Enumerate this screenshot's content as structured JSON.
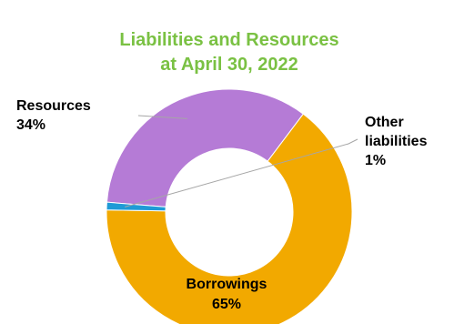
{
  "chart_data": {
    "type": "pie",
    "title_lines": [
      "Liabilities and Resources",
      "at April 30, 2022"
    ],
    "slices": [
      {
        "name": "Borrowings",
        "label_lines": [
          "Borrowings"
        ],
        "percent_label": "65%",
        "value": 65,
        "color": "#f2a900"
      },
      {
        "name": "Resources",
        "label_lines": [
          "Resources"
        ],
        "percent_label": "34%",
        "value": 34,
        "color": "#b57bd6"
      },
      {
        "name": "Other liabilities",
        "label_lines": [
          "Other",
          "liabilities"
        ],
        "percent_label": "1%",
        "value": 1,
        "color": "#1f9ad6"
      }
    ]
  }
}
